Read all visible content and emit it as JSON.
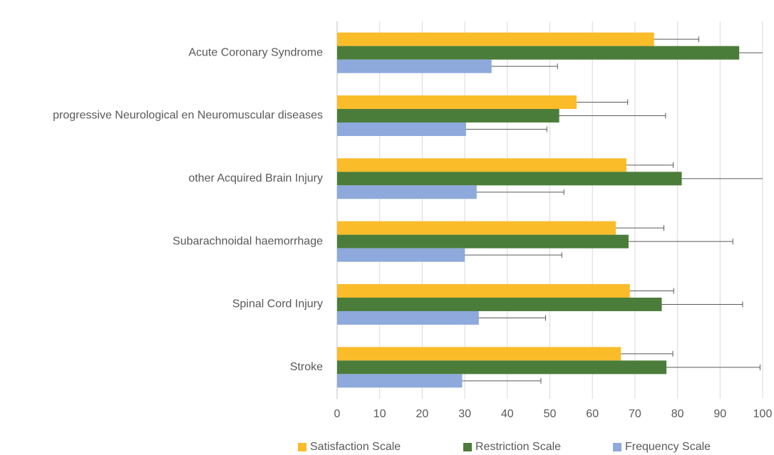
{
  "chart_data": {
    "type": "hbar",
    "categories": [
      "Acute Coronary Syndrome",
      "progressive Neurological en Neuromuscular diseases",
      "other Acquired Brain Injury",
      "Subarachnoidal haemorrhage",
      "Spinal Cord Injury",
      "Stroke"
    ],
    "series": [
      {
        "name": "Satisfaction Scale",
        "color": "#fbbc2a",
        "values": [
          74.5,
          56.3,
          68,
          65.5,
          68.8,
          66.7
        ],
        "errors": [
          10.5,
          12,
          11,
          11.3,
          10.3,
          12.2
        ]
      },
      {
        "name": "Restriction Scale",
        "color": "#4b7d3a",
        "values": [
          94.5,
          52.2,
          81,
          68.5,
          76.3,
          77.4
        ],
        "errors": [
          11.5,
          25,
          21,
          24.5,
          19,
          22
        ]
      },
      {
        "name": "Frequency Scale",
        "color": "#8ea9db",
        "values": [
          36.3,
          30.3,
          32.8,
          30,
          33.3,
          29.4
        ],
        "errors": [
          15.5,
          19,
          20.5,
          22.8,
          15.7,
          18.5
        ]
      }
    ],
    "xlim": [
      0,
      100
    ],
    "xticks": [
      0,
      10,
      20,
      30,
      40,
      50,
      60,
      70,
      80,
      90,
      100
    ],
    "grid": true,
    "legend": "bottom"
  }
}
